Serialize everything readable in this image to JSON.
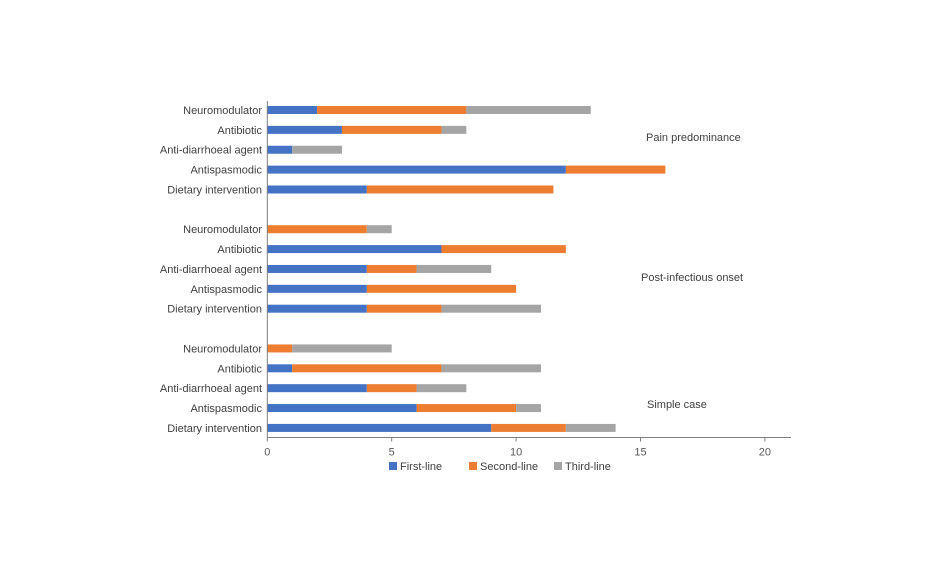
{
  "chart_data": {
    "type": "bar",
    "orientation": "horizontal",
    "stacked": true,
    "title": "",
    "xlabel": "",
    "ylabel": "",
    "xlim": [
      0,
      21
    ],
    "x_ticks": [
      0,
      5,
      10,
      15,
      20
    ],
    "grid": false,
    "legend_position": "bottom",
    "categories": [
      "Neuromodulator",
      "Antibiotic",
      "Anti-diarrhoeal agent",
      "Antispasmodic",
      "Dietary intervention"
    ],
    "groups": [
      {
        "name": "Pain predominance",
        "series": [
          {
            "name": "First-line",
            "values": [
              2,
              3,
              1,
              12,
              4
            ]
          },
          {
            "name": "Second-line",
            "values": [
              6,
              4,
              0,
              4,
              7.5
            ]
          },
          {
            "name": "Third-line",
            "values": [
              5,
              1,
              2,
              0,
              0
            ]
          }
        ]
      },
      {
        "name": "Post-infectious onset",
        "series": [
          {
            "name": "First-line",
            "values": [
              0,
              7,
              4,
              4,
              4
            ]
          },
          {
            "name": "Second-line",
            "values": [
              4,
              5,
              2,
              6,
              3
            ]
          },
          {
            "name": "Third-line",
            "values": [
              1,
              0,
              3,
              0,
              4
            ]
          }
        ]
      },
      {
        "name": "Simple case",
        "series": [
          {
            "name": "First-line",
            "values": [
              0,
              1,
              4,
              6,
              9
            ]
          },
          {
            "name": "Second-line",
            "values": [
              1,
              6,
              2,
              4,
              3
            ]
          },
          {
            "name": "Third-line",
            "values": [
              4,
              4,
              2,
              1,
              2
            ]
          }
        ]
      }
    ],
    "legend": [
      {
        "name": "First-line",
        "color": "#4472C4"
      },
      {
        "name": "Second-line",
        "color": "#ED7D31"
      },
      {
        "name": "Third-line",
        "color": "#A5A5A5"
      }
    ]
  }
}
